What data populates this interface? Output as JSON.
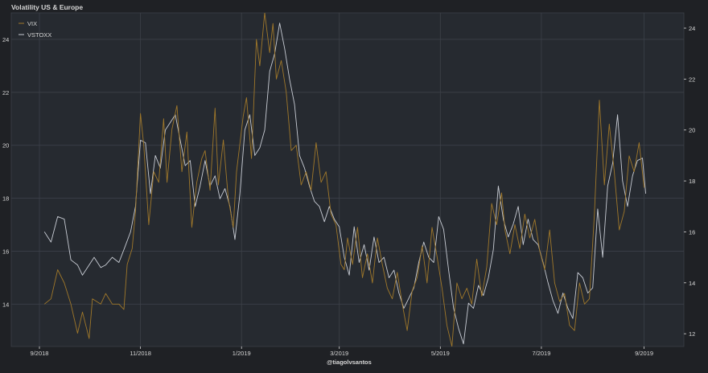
{
  "colors": {
    "background": "#1f2125",
    "plot_background": "#262a30",
    "grid": "#3c4048",
    "axis_text": "#d6d6d6",
    "vix": "#a0782a",
    "vstoxx": "#c8ccd4"
  },
  "chart_data": {
    "type": "line",
    "title": "Volatility US & Europe",
    "credit": "@tiagolvsantos",
    "legend": {
      "placement": "top-left"
    },
    "grid": true,
    "x_ticks": [
      "9/2018",
      "11/2018",
      "1/2019",
      "3/2019",
      "5/2019",
      "7/2019",
      "9/2019"
    ],
    "xlim": [
      "2018-08-15",
      "2019-09-25"
    ],
    "y_left": {
      "ylim": [
        12.4,
        25.0
      ],
      "ticks": [
        14,
        16,
        18,
        20,
        22,
        24
      ]
    },
    "y_right": {
      "ylim": [
        11.5,
        24.6
      ],
      "ticks": [
        12,
        14,
        16,
        18,
        20,
        22,
        24
      ]
    },
    "series": [
      {
        "name": "VIX",
        "axis": "left",
        "points": [
          [
            "2018-09-04",
            14.0
          ],
          [
            "2018-09-08",
            14.2
          ],
          [
            "2018-09-12",
            15.3
          ],
          [
            "2018-09-16",
            14.8
          ],
          [
            "2018-09-20",
            14.0
          ],
          [
            "2018-09-24",
            12.9
          ],
          [
            "2018-09-27",
            13.7
          ],
          [
            "2018-10-01",
            12.7
          ],
          [
            "2018-10-03",
            14.2
          ],
          [
            "2018-10-08",
            14.0
          ],
          [
            "2018-10-11",
            14.4
          ],
          [
            "2018-10-15",
            14.0
          ],
          [
            "2018-10-19",
            14.0
          ],
          [
            "2018-10-22",
            13.8
          ],
          [
            "2018-10-24",
            15.5
          ],
          [
            "2018-10-27",
            16.1
          ],
          [
            "2018-10-29",
            17.5
          ],
          [
            "2018-11-01",
            21.2
          ],
          [
            "2018-11-03",
            20.0
          ],
          [
            "2018-11-06",
            17.0
          ],
          [
            "2018-11-09",
            19.0
          ],
          [
            "2018-11-12",
            18.6
          ],
          [
            "2018-11-15",
            21.0
          ],
          [
            "2018-11-17",
            18.6
          ],
          [
            "2018-11-20",
            20.6
          ],
          [
            "2018-11-23",
            21.5
          ],
          [
            "2018-11-26",
            19.0
          ],
          [
            "2018-11-29",
            20.5
          ],
          [
            "2018-12-02",
            16.9
          ],
          [
            "2018-12-05",
            18.6
          ],
          [
            "2018-12-08",
            19.5
          ],
          [
            "2018-12-10",
            19.8
          ],
          [
            "2018-12-13",
            18.3
          ],
          [
            "2018-12-16",
            21.4
          ],
          [
            "2018-12-18",
            18.5
          ],
          [
            "2018-12-21",
            20.2
          ],
          [
            "2018-12-24",
            18.0
          ],
          [
            "2018-12-27",
            16.9
          ],
          [
            "2018-12-29",
            19.0
          ],
          [
            "2019-01-02",
            21.1
          ],
          [
            "2019-01-04",
            21.8
          ],
          [
            "2019-01-07",
            19.5
          ],
          [
            "2019-01-10",
            24.0
          ],
          [
            "2019-01-12",
            23.0
          ],
          [
            "2019-01-15",
            25.0
          ],
          [
            "2019-01-18",
            23.5
          ],
          [
            "2019-01-20",
            24.6
          ],
          [
            "2019-01-22",
            22.5
          ],
          [
            "2019-01-25",
            23.2
          ],
          [
            "2019-01-28",
            22.0
          ],
          [
            "2019-01-31",
            19.8
          ],
          [
            "2019-02-03",
            20.0
          ],
          [
            "2019-02-06",
            18.5
          ],
          [
            "2019-02-09",
            19.0
          ],
          [
            "2019-02-12",
            18.3
          ],
          [
            "2019-02-15",
            20.1
          ],
          [
            "2019-02-18",
            18.6
          ],
          [
            "2019-02-21",
            19.0
          ],
          [
            "2019-02-24",
            17.4
          ],
          [
            "2019-02-27",
            17.0
          ],
          [
            "2019-03-02",
            15.5
          ],
          [
            "2019-03-04",
            15.3
          ],
          [
            "2019-03-06",
            16.5
          ],
          [
            "2019-03-09",
            15.5
          ],
          [
            "2019-03-12",
            16.9
          ],
          [
            "2019-03-15",
            15.0
          ],
          [
            "2019-03-18",
            15.9
          ],
          [
            "2019-03-21",
            14.8
          ],
          [
            "2019-03-24",
            16.5
          ],
          [
            "2019-03-27",
            15.5
          ],
          [
            "2019-03-30",
            14.6
          ],
          [
            "2019-04-02",
            14.2
          ],
          [
            "2019-04-05",
            15.2
          ],
          [
            "2019-04-08",
            14.0
          ],
          [
            "2019-04-11",
            13.0
          ],
          [
            "2019-04-14",
            14.5
          ],
          [
            "2019-04-17",
            15.0
          ],
          [
            "2019-04-20",
            16.2
          ],
          [
            "2019-04-23",
            14.8
          ],
          [
            "2019-04-26",
            16.9
          ],
          [
            "2019-04-29",
            15.8
          ],
          [
            "2019-05-02",
            14.6
          ],
          [
            "2019-05-05",
            13.2
          ],
          [
            "2019-05-08",
            12.4
          ],
          [
            "2019-05-11",
            14.8
          ],
          [
            "2019-05-14",
            14.2
          ],
          [
            "2019-05-17",
            14.6
          ],
          [
            "2019-05-20",
            14.0
          ],
          [
            "2019-05-23",
            15.7
          ],
          [
            "2019-05-26",
            14.3
          ],
          [
            "2019-05-29",
            15.4
          ],
          [
            "2019-06-01",
            17.8
          ],
          [
            "2019-06-04",
            17.0
          ],
          [
            "2019-06-07",
            18.2
          ],
          [
            "2019-06-09",
            16.8
          ],
          [
            "2019-06-12",
            15.9
          ],
          [
            "2019-06-15",
            17.0
          ],
          [
            "2019-06-18",
            16.1
          ],
          [
            "2019-06-21",
            17.4
          ],
          [
            "2019-06-24",
            16.5
          ],
          [
            "2019-06-27",
            17.2
          ],
          [
            "2019-06-30",
            16.0
          ],
          [
            "2019-07-03",
            15.3
          ],
          [
            "2019-07-06",
            16.8
          ],
          [
            "2019-07-09",
            14.8
          ],
          [
            "2019-07-12",
            14.1
          ],
          [
            "2019-07-15",
            14.4
          ],
          [
            "2019-07-18",
            13.2
          ],
          [
            "2019-07-21",
            13.0
          ],
          [
            "2019-07-24",
            14.8
          ],
          [
            "2019-07-27",
            14.0
          ],
          [
            "2019-07-30",
            14.2
          ],
          [
            "2019-08-02",
            17.4
          ],
          [
            "2019-08-05",
            21.7
          ],
          [
            "2019-08-08",
            18.5
          ],
          [
            "2019-08-11",
            20.8
          ],
          [
            "2019-08-14",
            19.0
          ],
          [
            "2019-08-17",
            16.8
          ],
          [
            "2019-08-20",
            17.5
          ],
          [
            "2019-08-23",
            19.6
          ],
          [
            "2019-08-26",
            19.0
          ],
          [
            "2019-08-29",
            20.1
          ],
          [
            "2019-09-01",
            18.4
          ]
        ]
      },
      {
        "name": "VSTOXX",
        "axis": "right",
        "points": [
          [
            "2018-09-04",
            16.0
          ],
          [
            "2018-09-08",
            15.6
          ],
          [
            "2018-09-12",
            16.6
          ],
          [
            "2018-09-16",
            16.5
          ],
          [
            "2018-09-20",
            14.9
          ],
          [
            "2018-09-24",
            14.7
          ],
          [
            "2018-09-27",
            14.3
          ],
          [
            "2018-10-01",
            14.7
          ],
          [
            "2018-10-04",
            15.0
          ],
          [
            "2018-10-08",
            14.6
          ],
          [
            "2018-10-11",
            14.7
          ],
          [
            "2018-10-15",
            15.0
          ],
          [
            "2018-10-19",
            14.8
          ],
          [
            "2018-10-22",
            15.3
          ],
          [
            "2018-10-26",
            16.0
          ],
          [
            "2018-10-29",
            17.0
          ],
          [
            "2018-11-01",
            19.6
          ],
          [
            "2018-11-04",
            19.5
          ],
          [
            "2018-11-07",
            17.5
          ],
          [
            "2018-11-10",
            19.0
          ],
          [
            "2018-11-13",
            18.5
          ],
          [
            "2018-11-16",
            20.0
          ],
          [
            "2018-11-19",
            20.3
          ],
          [
            "2018-11-22",
            20.6
          ],
          [
            "2018-11-25",
            19.6
          ],
          [
            "2018-11-28",
            18.6
          ],
          [
            "2018-12-01",
            18.8
          ],
          [
            "2018-12-04",
            17.0
          ],
          [
            "2018-12-07",
            17.8
          ],
          [
            "2018-12-10",
            18.8
          ],
          [
            "2018-12-13",
            17.8
          ],
          [
            "2018-12-16",
            18.2
          ],
          [
            "2018-12-19",
            17.3
          ],
          [
            "2018-12-22",
            17.7
          ],
          [
            "2018-12-25",
            17.0
          ],
          [
            "2018-12-28",
            15.7
          ],
          [
            "2018-12-31",
            17.5
          ],
          [
            "2019-01-03",
            20.0
          ],
          [
            "2019-01-06",
            20.6
          ],
          [
            "2019-01-09",
            19.0
          ],
          [
            "2019-01-12",
            19.3
          ],
          [
            "2019-01-15",
            20.0
          ],
          [
            "2019-01-18",
            22.3
          ],
          [
            "2019-01-21",
            23.0
          ],
          [
            "2019-01-24",
            24.2
          ],
          [
            "2019-01-27",
            23.2
          ],
          [
            "2019-01-30",
            22.0
          ],
          [
            "2019-02-02",
            21.0
          ],
          [
            "2019-02-05",
            19.0
          ],
          [
            "2019-02-08",
            18.5
          ],
          [
            "2019-02-11",
            17.8
          ],
          [
            "2019-02-14",
            17.2
          ],
          [
            "2019-02-17",
            17.0
          ],
          [
            "2019-02-20",
            16.4
          ],
          [
            "2019-02-23",
            17.0
          ],
          [
            "2019-02-26",
            16.5
          ],
          [
            "2019-03-01",
            16.2
          ],
          [
            "2019-03-04",
            15.0
          ],
          [
            "2019-03-07",
            14.3
          ],
          [
            "2019-03-10",
            16.2
          ],
          [
            "2019-03-13",
            14.8
          ],
          [
            "2019-03-16",
            15.5
          ],
          [
            "2019-03-19",
            14.5
          ],
          [
            "2019-03-22",
            15.8
          ],
          [
            "2019-03-25",
            14.8
          ],
          [
            "2019-03-28",
            15.0
          ],
          [
            "2019-03-31",
            14.2
          ],
          [
            "2019-04-03",
            14.5
          ],
          [
            "2019-04-06",
            13.6
          ],
          [
            "2019-04-09",
            13.0
          ],
          [
            "2019-04-12",
            13.4
          ],
          [
            "2019-04-15",
            13.8
          ],
          [
            "2019-04-18",
            14.8
          ],
          [
            "2019-04-21",
            15.6
          ],
          [
            "2019-04-24",
            15.0
          ],
          [
            "2019-04-27",
            14.8
          ],
          [
            "2019-04-30",
            16.6
          ],
          [
            "2019-05-03",
            16.1
          ],
          [
            "2019-05-06",
            14.5
          ],
          [
            "2019-05-09",
            13.0
          ],
          [
            "2019-05-12",
            12.2
          ],
          [
            "2019-05-15",
            11.6
          ],
          [
            "2019-05-18",
            13.2
          ],
          [
            "2019-05-21",
            13.0
          ],
          [
            "2019-05-24",
            13.9
          ],
          [
            "2019-05-27",
            13.5
          ],
          [
            "2019-05-30",
            14.2
          ],
          [
            "2019-06-02",
            15.3
          ],
          [
            "2019-06-05",
            17.8
          ],
          [
            "2019-06-08",
            16.5
          ],
          [
            "2019-06-11",
            15.8
          ],
          [
            "2019-06-14",
            16.3
          ],
          [
            "2019-06-17",
            17.0
          ],
          [
            "2019-06-20",
            15.5
          ],
          [
            "2019-06-23",
            16.5
          ],
          [
            "2019-06-26",
            15.7
          ],
          [
            "2019-06-29",
            15.5
          ],
          [
            "2019-07-02",
            14.8
          ],
          [
            "2019-07-05",
            14.0
          ],
          [
            "2019-07-08",
            13.3
          ],
          [
            "2019-07-11",
            12.8
          ],
          [
            "2019-07-14",
            13.6
          ],
          [
            "2019-07-17",
            13.0
          ],
          [
            "2019-07-20",
            12.6
          ],
          [
            "2019-07-23",
            14.4
          ],
          [
            "2019-07-26",
            14.2
          ],
          [
            "2019-07-29",
            13.6
          ],
          [
            "2019-08-01",
            13.8
          ],
          [
            "2019-08-04",
            16.9
          ],
          [
            "2019-08-07",
            15.0
          ],
          [
            "2019-08-10",
            17.8
          ],
          [
            "2019-08-13",
            18.7
          ],
          [
            "2019-08-16",
            20.6
          ],
          [
            "2019-08-19",
            18.0
          ],
          [
            "2019-08-22",
            17.0
          ],
          [
            "2019-08-25",
            18.2
          ],
          [
            "2019-08-28",
            18.8
          ],
          [
            "2019-08-31",
            18.9
          ],
          [
            "2019-09-02",
            17.5
          ]
        ]
      }
    ]
  }
}
